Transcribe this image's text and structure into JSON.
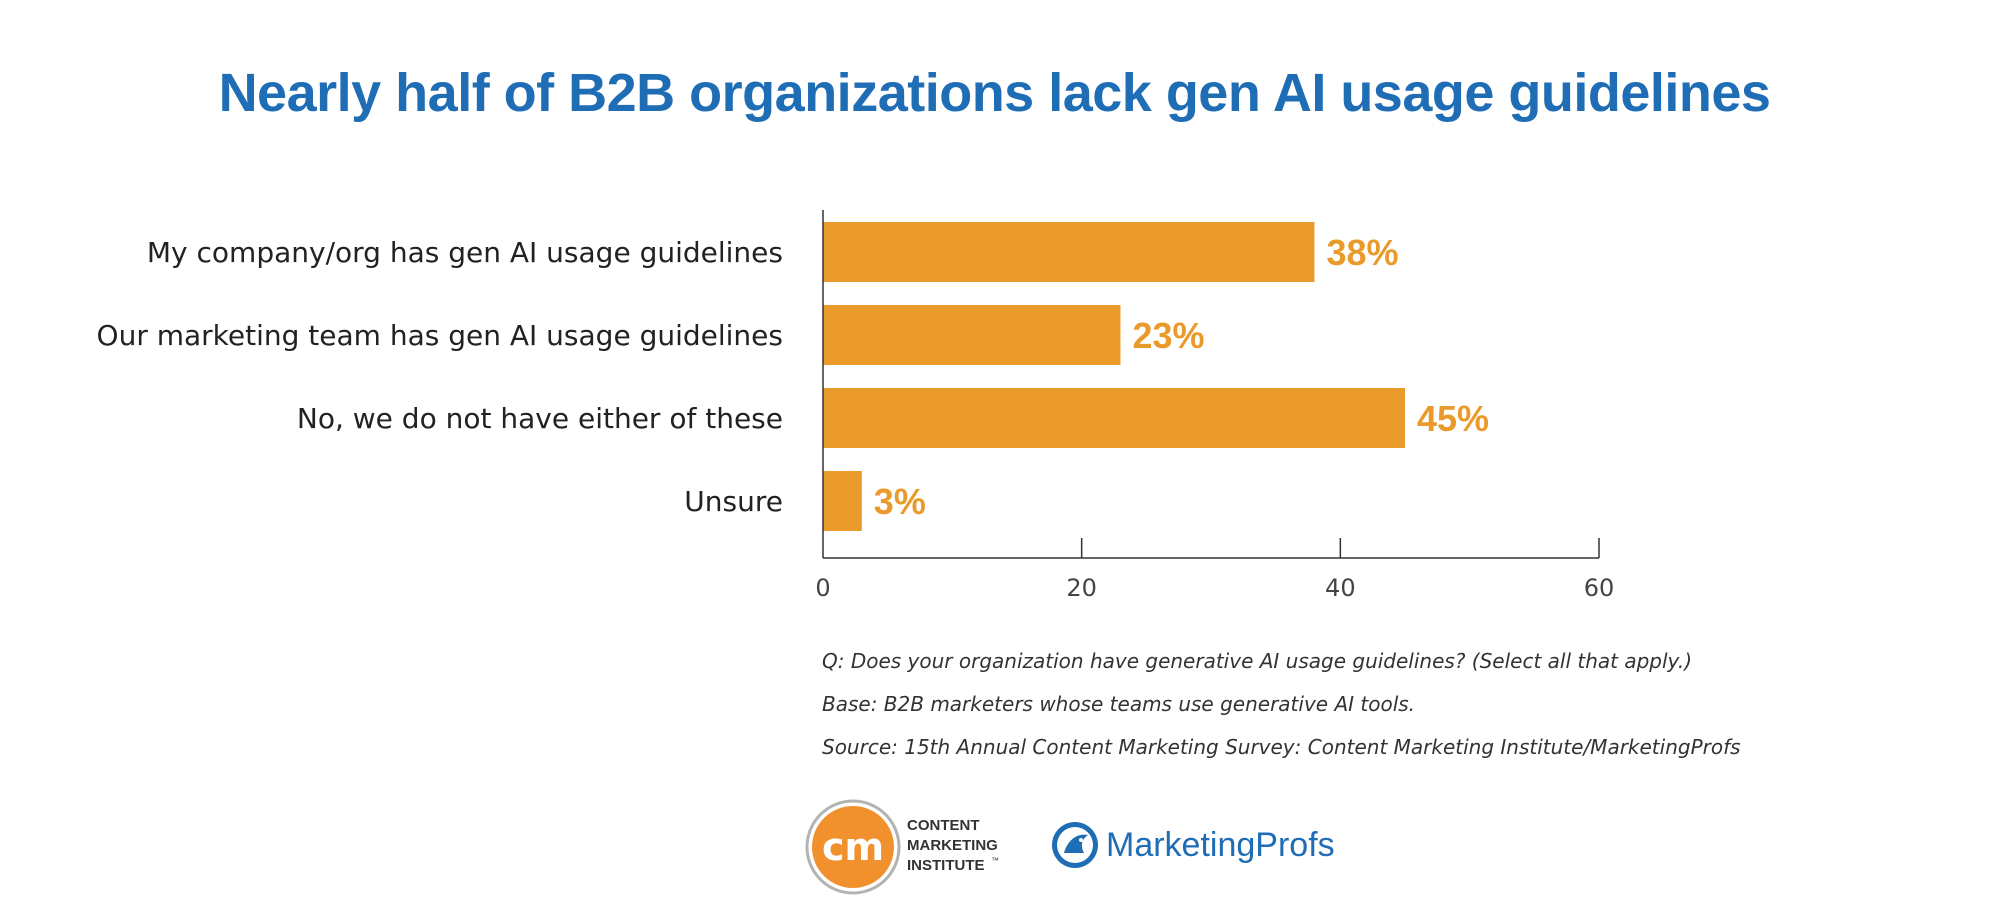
{
  "title": "Nearly half of B2B organizations lack gen AI usage guidelines",
  "chart_data": {
    "type": "bar",
    "orientation": "horizontal",
    "categories": [
      "My company/org has gen AI usage guidelines",
      "Our marketing team has gen AI usage guidelines",
      "No, we do not have either of these",
      "Unsure"
    ],
    "values": [
      38,
      23,
      45,
      3
    ],
    "data_labels": [
      "38%",
      "23%",
      "45%",
      "3%"
    ],
    "xlim": [
      0,
      60
    ],
    "x_ticks": [
      0,
      20,
      40,
      60
    ],
    "grid": false,
    "bar_color": "#e99a2a",
    "label_color": "#e99a2a"
  },
  "notes": {
    "question": "Q: Does your organization have generative AI usage guidelines? (Select all that apply.)",
    "base": "Base: B2B marketers whose teams use generative AI tools.",
    "source": "Source: 15th Annual Content Marketing Survey: Content Marketing Institute/MarketingProfs"
  },
  "logos": {
    "cmi": {
      "mark": "cm",
      "line1": "CONTENT",
      "line2": "MARKETING",
      "line3": "INSTITUTE",
      "tm": "™",
      "color": "#f0912d"
    },
    "marketingprofs": {
      "name": "MarketingProfs",
      "color": "#1f6db5"
    }
  }
}
